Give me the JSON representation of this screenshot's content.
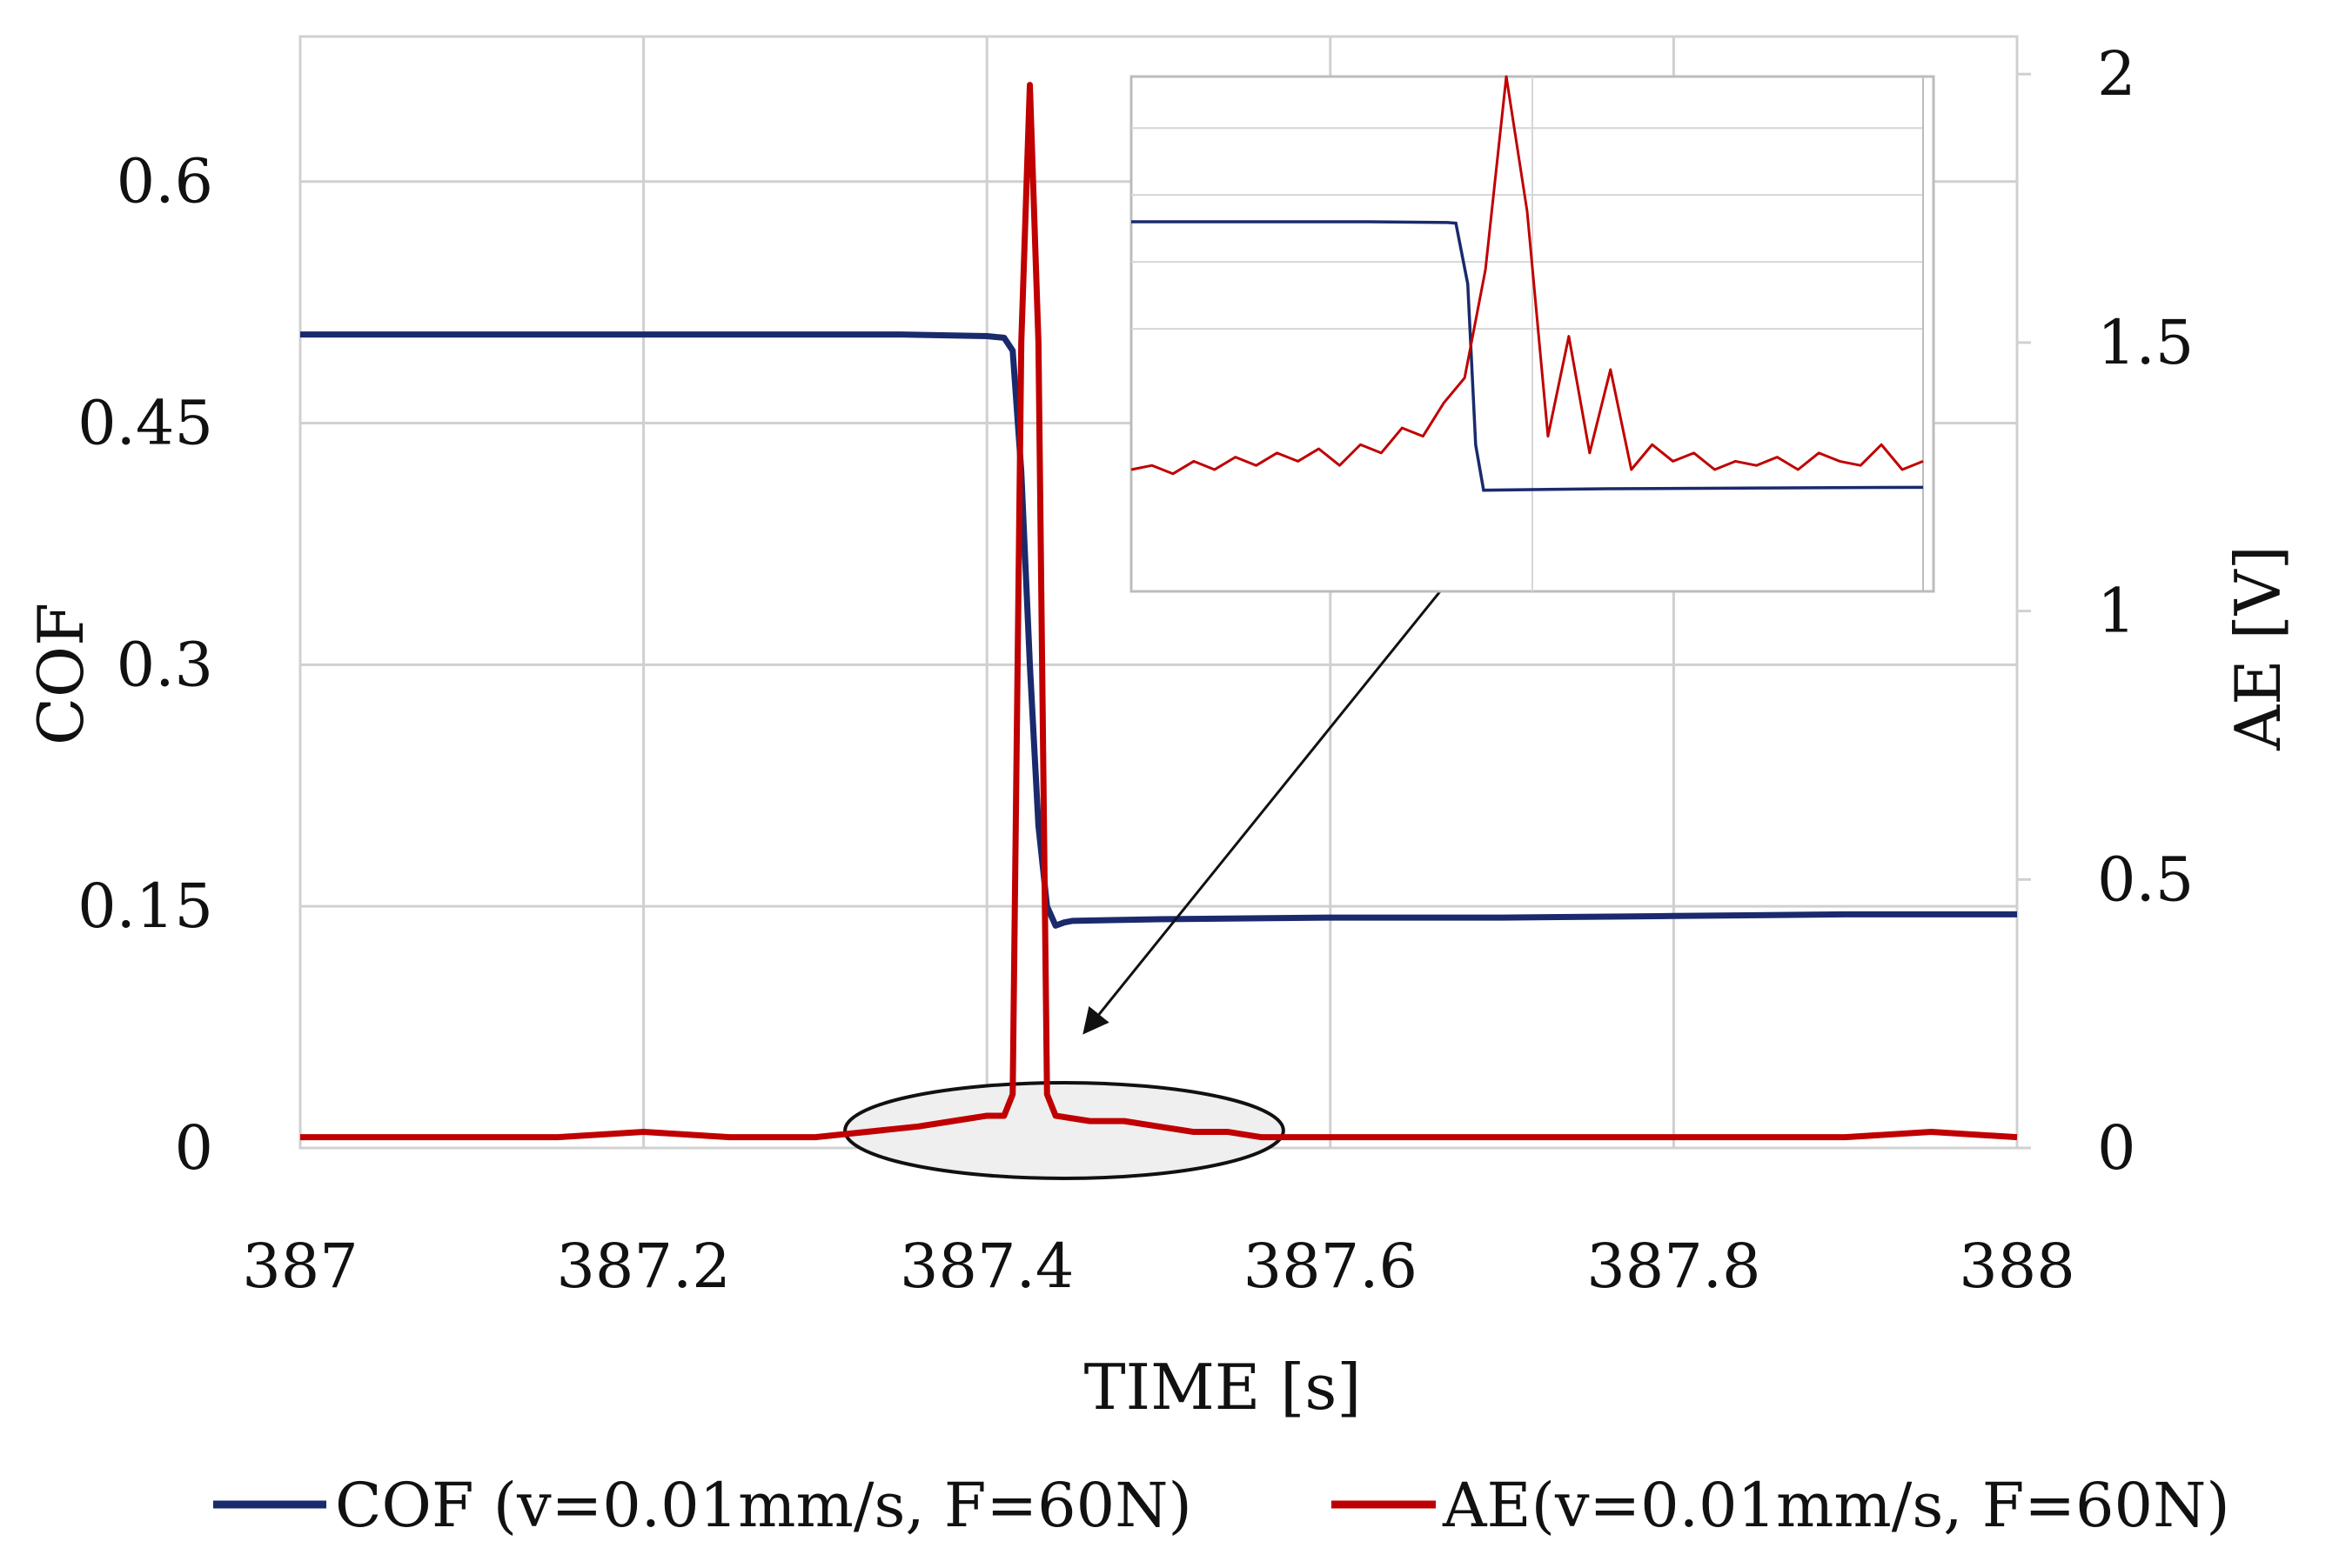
{
  "chart_data": {
    "type": "line",
    "xlabel": "TIME [s]",
    "ylabel_left": "COF",
    "ylabel_right": "AE [V]",
    "xlim": [
      387,
      388
    ],
    "ylim_left": [
      0,
      0.69
    ],
    "ylim_right": [
      0,
      2.07
    ],
    "x_ticks": [
      "387",
      "387.2",
      "387.4",
      "387.6",
      "387.8",
      "388"
    ],
    "y_left_ticks": [
      "0",
      "0.15",
      "0.3",
      "0.45",
      "0.6"
    ],
    "y_right_ticks": [
      "0",
      "0.5",
      "1",
      "1.5",
      "2"
    ],
    "grid": true,
    "legend_position": "bottom",
    "colors": {
      "cof": "#1a2a6c",
      "ae": "#c00000"
    },
    "series": [
      {
        "name": "COF (v=0.01mm/s, F=60N)",
        "axis": "left",
        "x": [
          387.0,
          387.1,
          387.2,
          387.3,
          387.35,
          387.4,
          387.41,
          387.415,
          387.42,
          387.425,
          387.43,
          387.435,
          387.44,
          387.445,
          387.45,
          387.5,
          387.6,
          387.7,
          387.8,
          387.9,
          388.0
        ],
        "values": [
          0.505,
          0.505,
          0.505,
          0.505,
          0.505,
          0.504,
          0.503,
          0.495,
          0.42,
          0.3,
          0.2,
          0.15,
          0.138,
          0.14,
          0.141,
          0.142,
          0.143,
          0.143,
          0.144,
          0.145,
          0.145
        ]
      },
      {
        "name": "AE(v=0.01mm/s, F=60N)",
        "axis": "right",
        "x": [
          387.0,
          387.05,
          387.1,
          387.15,
          387.2,
          387.25,
          387.3,
          387.33,
          387.36,
          387.38,
          387.4,
          387.41,
          387.415,
          387.42,
          387.425,
          387.43,
          387.435,
          387.44,
          387.46,
          387.48,
          387.5,
          387.52,
          387.54,
          387.56,
          387.6,
          387.7,
          387.8,
          387.9,
          387.95,
          388.0
        ],
        "values": [
          0.02,
          0.02,
          0.02,
          0.02,
          0.03,
          0.02,
          0.02,
          0.03,
          0.04,
          0.05,
          0.06,
          0.06,
          0.1,
          1.5,
          1.98,
          1.5,
          0.1,
          0.06,
          0.05,
          0.05,
          0.04,
          0.03,
          0.03,
          0.02,
          0.02,
          0.02,
          0.02,
          0.02,
          0.03,
          0.02
        ]
      }
    ],
    "inset": {
      "x_range": [
        387.33,
        387.56
      ],
      "cof_values": [
        0.505,
        0.505,
        0.505,
        0.505,
        0.504,
        0.503,
        0.42,
        0.2,
        0.138,
        0.14,
        0.141,
        0.142
      ],
      "ae_values": [
        0.04,
        0.045,
        0.035,
        0.05,
        0.04,
        0.055,
        0.045,
        0.06,
        0.05,
        0.065,
        0.045,
        0.07,
        0.06,
        0.09,
        0.08,
        0.12,
        0.15,
        0.28,
        0.9,
        0.35,
        0.08,
        0.2,
        0.06,
        0.16,
        0.04,
        0.07,
        0.05,
        0.06,
        0.04,
        0.05,
        0.045,
        0.055,
        0.04,
        0.06,
        0.05,
        0.045,
        0.07,
        0.04,
        0.05
      ]
    }
  }
}
